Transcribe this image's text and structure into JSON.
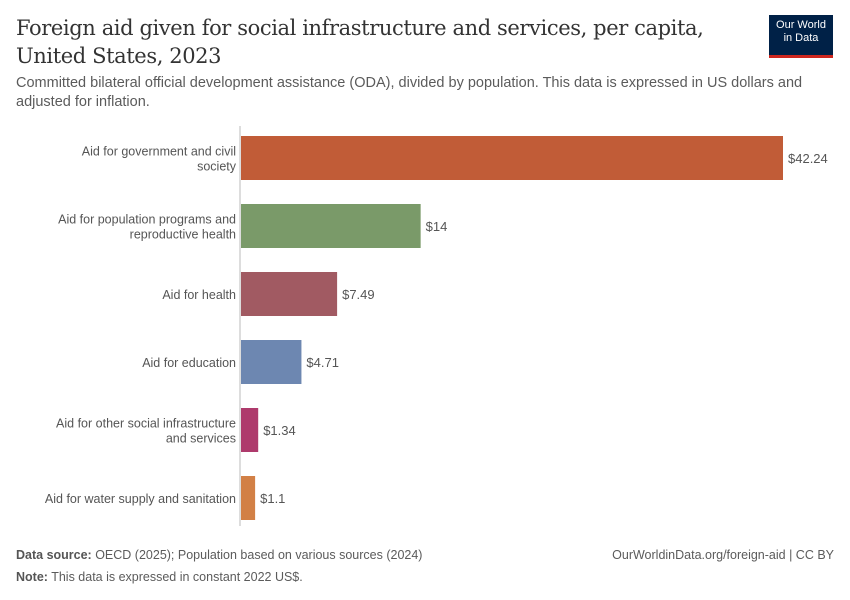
{
  "chart_data": {
    "type": "bar",
    "orientation": "horizontal",
    "title": "Foreign aid given for social infrastructure and services, per capita, United States, 2023",
    "subtitle": "Committed bilateral official development assistance (ODA), divided by population. This data is expressed in US dollars and adjusted for inflation.",
    "categories": [
      [
        "Aid for government and civil",
        "society"
      ],
      [
        "Aid for population programs and",
        "reproductive health"
      ],
      [
        "Aid for health"
      ],
      [
        "Aid for education"
      ],
      [
        "Aid for other social infrastructure",
        "and services"
      ],
      [
        "Aid for water supply and sanitation"
      ]
    ],
    "values": [
      42.24,
      14,
      7.49,
      4.71,
      1.34,
      1.1
    ],
    "value_labels": [
      "$42.24",
      "$14",
      "$7.49",
      "$4.71",
      "$1.34",
      "$1.1"
    ],
    "colors": [
      "#C15C37",
      "#7A9A69",
      "#A15A62",
      "#6D87B1",
      "#AE3A6C",
      "#D28046"
    ],
    "xlim": [
      0,
      42.24
    ],
    "grid": false
  },
  "logo": {
    "line1": "Our World",
    "line2": "in Data"
  },
  "footer": {
    "source_label": "Data source:",
    "source": " OECD (2025); Population based on various sources (2024)",
    "note_label": "Note:",
    "note": " This data is expressed in constant 2022 US$.",
    "url": "OurWorldinData.org/foreign-aid | CC BY"
  }
}
